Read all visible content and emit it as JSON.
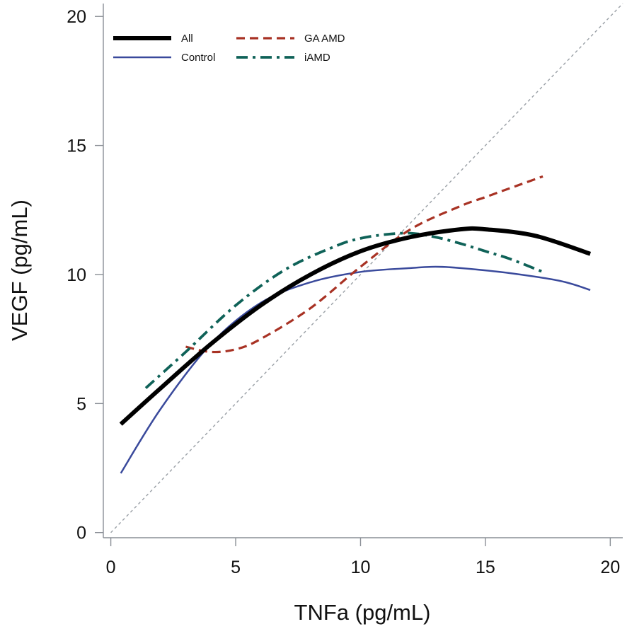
{
  "chart_data": {
    "type": "line",
    "title": "",
    "xlabel": "TNFa (pg/mL)",
    "ylabel": "VEGF (pg/mL)",
    "xlim": [
      -0.3,
      20.5
    ],
    "ylim": [
      -0.2,
      20.5
    ],
    "xticks": [
      0,
      5,
      10,
      15,
      20
    ],
    "yticks": [
      0,
      5,
      10,
      15,
      20
    ],
    "grid": false,
    "legend_position": "top-left",
    "reference_line": {
      "name": "identity",
      "color": "#9aa0a6",
      "from": [
        0,
        0
      ],
      "to": [
        20.5,
        20.5
      ]
    },
    "series": [
      {
        "name": "All",
        "color": "#000000",
        "style": "solid-thick",
        "x": [
          0.4,
          2,
          4,
          6,
          8,
          10,
          12,
          14,
          15,
          17,
          19.2
        ],
        "y": [
          4.2,
          5.6,
          7.3,
          8.8,
          10.0,
          10.9,
          11.45,
          11.75,
          11.75,
          11.5,
          10.8
        ]
      },
      {
        "name": "GA AMD",
        "color": "#a83224",
        "style": "dashed",
        "x": [
          3.0,
          4.0,
          5.0,
          6.0,
          8.0,
          10.0,
          12.0,
          14.0,
          15.0,
          16.0,
          17.3
        ],
        "y": [
          7.2,
          7.0,
          7.1,
          7.5,
          8.7,
          10.3,
          11.75,
          12.65,
          13.0,
          13.35,
          13.8
        ]
      },
      {
        "name": "Control",
        "color": "#3a4a9c",
        "style": "solid-thin",
        "x": [
          0.4,
          2,
          4,
          6,
          8,
          10,
          12,
          13,
          14,
          16,
          18,
          19.2
        ],
        "y": [
          2.3,
          4.8,
          7.3,
          8.9,
          9.7,
          10.1,
          10.25,
          10.3,
          10.25,
          10.05,
          9.75,
          9.4
        ]
      },
      {
        "name": "iAMD",
        "color": "#0f6258",
        "style": "dash-dot",
        "x": [
          1.4,
          3,
          5,
          7,
          9,
          10,
          11,
          12,
          13,
          14,
          15,
          16,
          17.3
        ],
        "y": [
          5.6,
          7.0,
          8.8,
          10.2,
          11.1,
          11.4,
          11.55,
          11.6,
          11.45,
          11.2,
          10.9,
          10.6,
          10.1
        ]
      }
    ]
  }
}
